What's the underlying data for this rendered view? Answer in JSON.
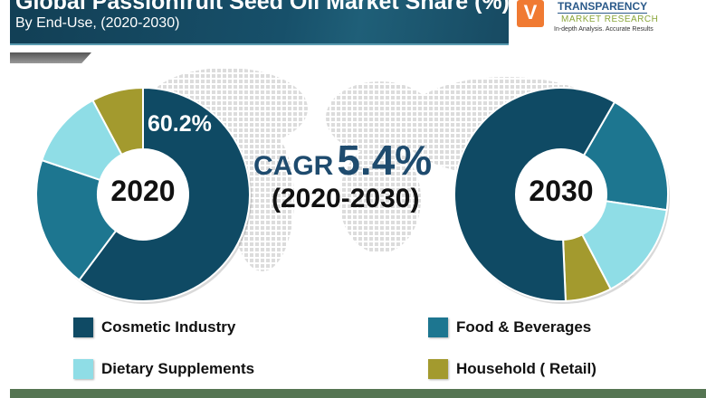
{
  "header": {
    "title": "Global Passionfruit Seed Oil Market Share (%)",
    "subtitle": "By End-Use, (2020-2030)"
  },
  "logo": {
    "mark": "V",
    "line1": "TRANSPARENCY",
    "line2": "MARKET RESEARCH",
    "tagline": "In-depth Analysis. Accurate Results"
  },
  "cagr": {
    "label": "CAGR",
    "value": "5.4%",
    "period": "(2020-2030)"
  },
  "colors": {
    "Cosmetic Industry": "#0f4a64",
    "Food & Beverages": "#1d7690",
    "Dietary Supplements": "#8fdde6",
    "Household ( Retail)": "#a39a2e",
    "header": "#123f55",
    "footer": "#557552"
  },
  "chart_data": [
    {
      "type": "pie",
      "variant": "donut",
      "center_label": "2020",
      "categories": [
        "Cosmetic Industry",
        "Food & Beverages",
        "Dietary Supplements",
        "Household ( Retail)"
      ],
      "values": [
        60.2,
        20.0,
        12.0,
        7.8
      ],
      "data_labels": [
        "60.2%",
        "",
        "",
        ""
      ],
      "unit": "%"
    },
    {
      "type": "pie",
      "variant": "donut",
      "center_label": "2030",
      "categories": [
        "Food & Beverages",
        "Dietary Supplements",
        "Household ( Retail)",
        "Cosmetic Industry"
      ],
      "values": [
        19.0,
        15.0,
        7.0,
        59.0
      ],
      "unit": "%"
    }
  ],
  "legend": {
    "position": "bottom",
    "items": [
      "Cosmetic Industry",
      "Food & Beverages",
      "Dietary Supplements",
      "Household ( Retail)"
    ]
  }
}
